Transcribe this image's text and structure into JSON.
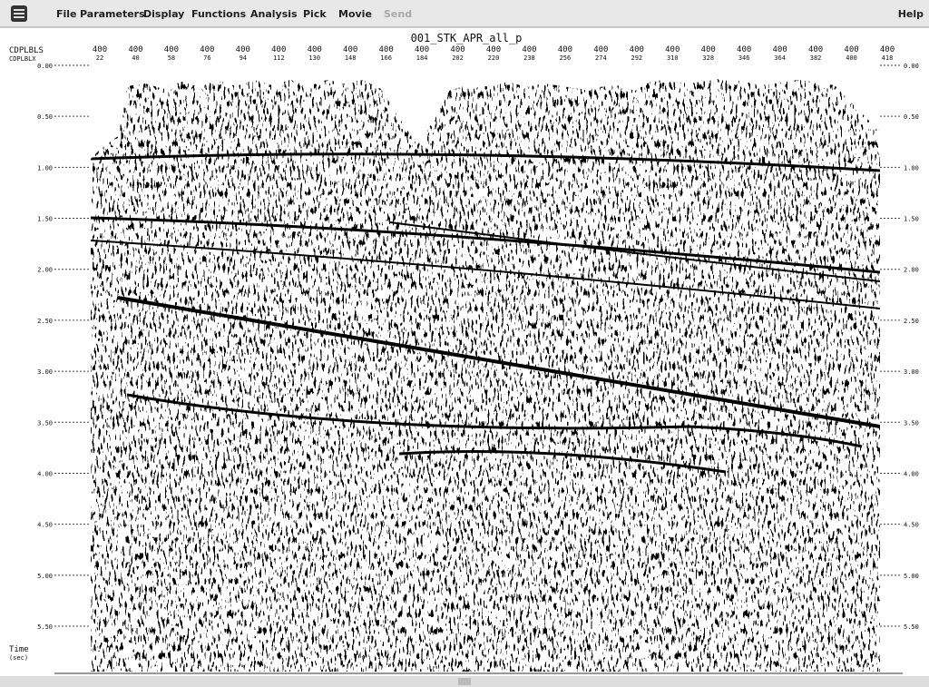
{
  "menu": {
    "items": [
      "File",
      "Parameters",
      "Display",
      "Functions",
      "Analysis",
      "Pick",
      "Movie",
      "Send"
    ],
    "help": "Help"
  },
  "plot": {
    "title": "001_STK_APR_all_p",
    "row1_label": "CDPLBLS",
    "row2_label": "CDPLBLX",
    "row1_values": [
      "400",
      "400",
      "400",
      "400",
      "400",
      "400",
      "400",
      "400",
      "400",
      "400",
      "400",
      "400",
      "400",
      "400",
      "400",
      "400",
      "400",
      "400",
      "400",
      "400",
      "400",
      "400",
      "400"
    ],
    "row2_values": [
      "22",
      "40",
      "58",
      "76",
      "94",
      "112",
      "130",
      "148",
      "166",
      "184",
      "202",
      "220",
      "238",
      "256",
      "274",
      "292",
      "310",
      "328",
      "346",
      "364",
      "382",
      "400",
      "418"
    ],
    "time_ticks": [
      "0.00",
      "0.50",
      "1.00",
      "1.50",
      "2.00",
      "2.50",
      "3.00",
      "3.50",
      "4.00",
      "4.50",
      "5.00",
      "5.50"
    ],
    "axis_label": "Time",
    "axis_unit": "(sec)"
  }
}
